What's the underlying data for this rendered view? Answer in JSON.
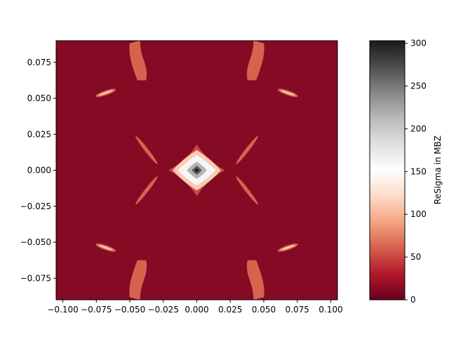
{
  "chart_data": {
    "type": "heatmap",
    "subtype": "filled-contour",
    "title": "",
    "xlabel": "",
    "ylabel": "",
    "xlim": [
      -0.105,
      0.105
    ],
    "ylim": [
      -0.09,
      0.09
    ],
    "x_ticks": [
      -0.1,
      -0.075,
      -0.05,
      -0.025,
      0.0,
      0.025,
      0.05,
      0.075,
      0.1
    ],
    "x_tick_labels": [
      "−0.100",
      "−0.075",
      "−0.050",
      "−0.025",
      "0.000",
      "0.025",
      "0.050",
      "0.075",
      "0.100"
    ],
    "y_ticks": [
      -0.075,
      -0.05,
      -0.025,
      0.0,
      0.025,
      0.05,
      0.075
    ],
    "y_tick_labels": [
      "−0.075",
      "−0.050",
      "−0.025",
      "0.000",
      "0.025",
      "0.050",
      "0.075"
    ],
    "background_level": 12,
    "colormap": "RdGy",
    "colorbar": {
      "label": "ReSigma in MBZ",
      "range": [
        0,
        303
      ],
      "ticks": [
        0,
        50,
        100,
        150,
        200,
        250,
        300
      ],
      "tick_labels": [
        "0",
        "50",
        "100",
        "150",
        "200",
        "250",
        "300"
      ],
      "levels": [
        0,
        25,
        50,
        75,
        100,
        125,
        150,
        175,
        200,
        225,
        250,
        275,
        303
      ]
    },
    "features": [
      {
        "name": "center-peak",
        "cx": 0.0,
        "cy": 0.0,
        "level_rings": [
          {
            "level": 50,
            "hx": 0.021,
            "hy": 0.018
          },
          {
            "level": 112,
            "hx": 0.018,
            "hy": 0.014
          },
          {
            "level": 160,
            "hx": 0.014,
            "hy": 0.0105
          },
          {
            "level": 215,
            "hx": 0.0075,
            "hy": 0.006
          },
          {
            "level": 265,
            "hx": 0.0038,
            "hy": 0.0032
          },
          {
            "level": 300,
            "hx": 0.0017,
            "hy": 0.0014
          }
        ]
      },
      {
        "name": "arc-upper-left",
        "x1": -0.045,
        "y1": 0.023,
        "x2": -0.03,
        "y2": 0.005,
        "level": 62
      },
      {
        "name": "arc-upper-right",
        "x1": 0.03,
        "y1": 0.005,
        "x2": 0.045,
        "y2": 0.023,
        "level": 62
      },
      {
        "name": "arc-lower-left",
        "x1": -0.045,
        "y1": -0.023,
        "x2": -0.03,
        "y2": -0.005,
        "level": 62
      },
      {
        "name": "arc-lower-right",
        "x1": 0.03,
        "y1": -0.005,
        "x2": 0.045,
        "y2": -0.023,
        "level": 62
      },
      {
        "name": "lobe-top-left",
        "cx": -0.044,
        "cy": 0.077,
        "level": 62
      },
      {
        "name": "lobe-top-right",
        "cx": 0.044,
        "cy": 0.077,
        "level": 62
      },
      {
        "name": "lobe-bottom-left",
        "cx": -0.044,
        "cy": -0.077,
        "level": 62
      },
      {
        "name": "lobe-bottom-right",
        "cx": 0.044,
        "cy": -0.077,
        "level": 62
      },
      {
        "name": "dash-upper-left",
        "x1": -0.075,
        "y1": 0.0515,
        "x2": -0.061,
        "y2": 0.056,
        "level": 62,
        "inner_level": 112
      },
      {
        "name": "dash-upper-right",
        "x1": 0.061,
        "y1": 0.056,
        "x2": 0.075,
        "y2": 0.0515,
        "level": 62,
        "inner_level": 112
      },
      {
        "name": "dash-lower-left",
        "x1": -0.075,
        "y1": -0.0515,
        "x2": -0.061,
        "y2": -0.056,
        "level": 62,
        "inner_level": 112
      },
      {
        "name": "dash-lower-right",
        "x1": 0.061,
        "y1": -0.056,
        "x2": 0.075,
        "y2": -0.0515,
        "level": 62,
        "inner_level": 112
      }
    ]
  }
}
